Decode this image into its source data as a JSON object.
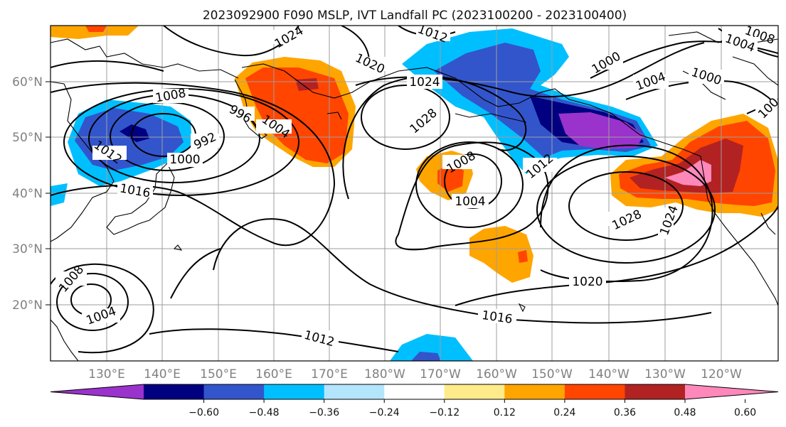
{
  "title": "2023092900 F090 MSLP, IVT Landfall PC (2023100200 - 2023100400)",
  "lon_labels": [
    "130°E",
    "140°E",
    "150°E",
    "160°E",
    "170°E",
    "180°W",
    "170°W",
    "160°W",
    "150°W",
    "140°W",
    "130°W",
    "120°W"
  ],
  "lat_labels": [
    "60°N",
    "50°N",
    "40°N",
    "30°N",
    "20°N"
  ],
  "colorbar": {
    "colors": [
      "#9933cc",
      "#000080",
      "#3355cc",
      "#00bfff",
      "#b3e5fc",
      "#ffffff",
      "#ffeb8a",
      "#ffa500",
      "#ff4500",
      "#b22222",
      "#ff88bb"
    ],
    "tick_labels": [
      "−0.60",
      "−0.48",
      "−0.36",
      "−0.24",
      "−0.12",
      "0.12",
      "0.24",
      "0.36",
      "0.48",
      "0.60"
    ]
  },
  "contour_labels": [
    "1024",
    "1012",
    "1008",
    "1004",
    "1020",
    "1024",
    "1000",
    "1000",
    "1004",
    "1008",
    "996",
    "1004",
    "992",
    "1012",
    "1000",
    "1016",
    "1028",
    "1008",
    "1004",
    "1012",
    "1028",
    "1024",
    "1020",
    "1016",
    "1012",
    "1008",
    "1004",
    "100"
  ]
}
